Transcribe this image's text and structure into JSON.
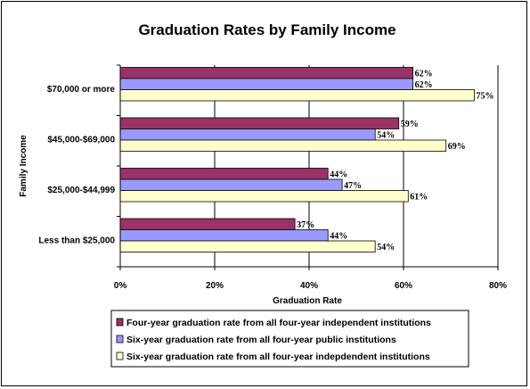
{
  "chart_data": {
    "type": "bar",
    "orientation": "horizontal",
    "title": "Graduation Rates by Family Income",
    "xlabel": "Graduation Rate",
    "ylabel": "Family Income",
    "categories": [
      "$70,000 or more",
      "$45,000-$69,000",
      "$25,000-$44,999",
      "Less than $25,000"
    ],
    "series": [
      {
        "name": "Four-year graduation rate from all four-year independent institutions",
        "values": [
          62,
          59,
          44,
          37
        ],
        "labels": [
          "62%",
          "59%",
          "44%",
          "37%"
        ],
        "color": "#993366"
      },
      {
        "name": "Six-year graduation rate from all four-year public institutions",
        "values": [
          62,
          54,
          47,
          44
        ],
        "labels": [
          "62%",
          "54%",
          "47%",
          "44%"
        ],
        "color": "#9999FF"
      },
      {
        "name": "Six-year graduation rate from all four-year indepdendent institutions",
        "values": [
          75,
          69,
          61,
          54
        ],
        "labels": [
          "75%",
          "69%",
          "61%",
          "54%"
        ],
        "color": "#FFFFCC"
      }
    ],
    "xlim": [
      0,
      80
    ],
    "xticks": [
      {
        "value": 0,
        "label": "0%"
      },
      {
        "value": 20,
        "label": "20%"
      },
      {
        "value": 40,
        "label": "40%"
      },
      {
        "value": 60,
        "label": "60%"
      },
      {
        "value": 80,
        "label": "80%"
      }
    ],
    "grid": "vertical",
    "legend_position": "bottom"
  }
}
